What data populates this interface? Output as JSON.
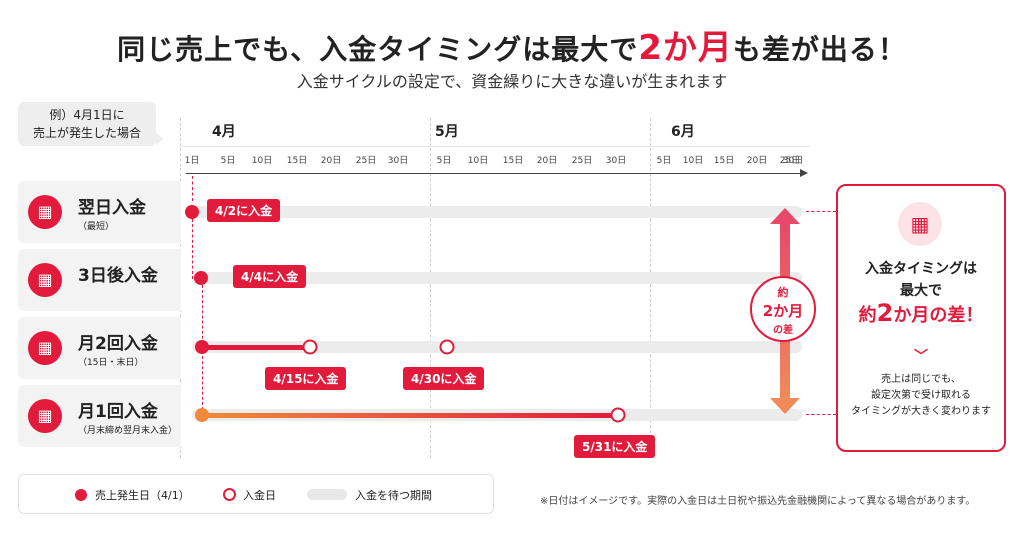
{
  "header": {
    "title_pre": "同じ売上でも、入金タイミングは最大で",
    "title_highlight": "2か月",
    "title_post": "も差が出る！",
    "subtitle": "入金サイクルの設定で、資金繰りに大きな違いが生まれます"
  },
  "example_box": {
    "line1": "例）4月1日に",
    "line2": "売上が発生した場合"
  },
  "months": [
    "4月",
    "5月",
    "6月"
  ],
  "ticks": [
    "1日",
    "5日",
    "10日",
    "15日",
    "20日",
    "25日",
    "30日",
    "5日",
    "10日",
    "15日",
    "20日",
    "25日",
    "30日",
    "5日",
    "10日",
    "15日",
    "20日",
    "25日",
    "30日"
  ],
  "rows": [
    {
      "title": "翌日入金",
      "sub": "（最短）",
      "tags": [
        "4/2に入金"
      ]
    },
    {
      "title": "3日後入金",
      "sub": "",
      "tags": [
        "4/4に入金"
      ]
    },
    {
      "title": "月2回入金",
      "sub": "（15日・末日）",
      "tags": [
        "4/15に入金",
        "4/30に入金"
      ]
    },
    {
      "title": "月1回入金",
      "sub": "（月末締め翌月末入金）",
      "tags": [
        "5/31に入金"
      ]
    }
  ],
  "diff_badge": {
    "line1": "約",
    "line2": "2か月",
    "line3": "の差"
  },
  "panel": {
    "line1": "入金タイミングは",
    "line2": "最大で",
    "line3_pre": "約",
    "line3_num": "2",
    "line3_post": "か月の差！",
    "note1": "売上は同じでも、",
    "note2": "設定次第で受け取れる",
    "note3": "タイミングが大きく変わります"
  },
  "legend": {
    "sale": "売上発生日（4/1）",
    "deposit": "入金日",
    "waiting": "入金を待つ期間"
  },
  "footnote": "※日付はイメージです。実際の入金日は土日祝や振込先金融機関によって異なる場合があります。",
  "colors": {
    "accent": "#e21b3c",
    "track": "#ececec",
    "gradient_end": "#f08a5a"
  },
  "icons": {
    "calendar": "calendar-icon"
  }
}
